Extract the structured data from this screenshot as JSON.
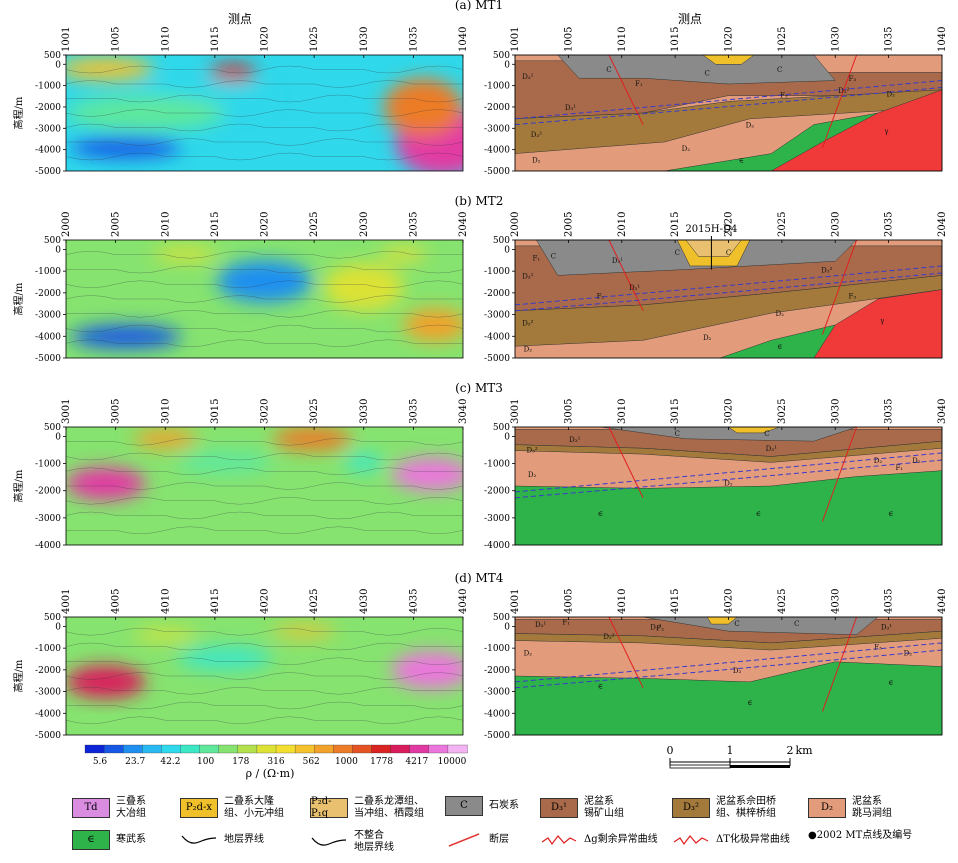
{
  "panels": [
    {
      "id": "a",
      "title": "(a) MT1",
      "stations": [
        "1001",
        "1005",
        "1010",
        "1015",
        "1020",
        "1025",
        "1030",
        "1035",
        "1040"
      ],
      "yticks": [
        "500",
        "0",
        "-1000",
        "-2000",
        "-3000",
        "-4000",
        "-5000"
      ],
      "left_head": "测点",
      "right_head": "测点",
      "borehole": "",
      "units": [
        {
          "label": "C",
          "x": 0.22,
          "y": 0.12
        },
        {
          "label": "C",
          "x": 0.45,
          "y": 0.15
        },
        {
          "label": "C",
          "x": 0.62,
          "y": 0.12
        },
        {
          "label": "D₃¹",
          "x": 0.03,
          "y": 0.18
        },
        {
          "label": "D₃¹",
          "x": 0.13,
          "y": 0.45
        },
        {
          "label": "D₃²",
          "x": 0.05,
          "y": 0.68
        },
        {
          "label": "D₂",
          "x": 0.05,
          "y": 0.9
        },
        {
          "label": "D₃²",
          "x": 0.77,
          "y": 0.3
        },
        {
          "label": "D₂",
          "x": 0.88,
          "y": 0.33
        },
        {
          "label": "D₂",
          "x": 0.55,
          "y": 0.6
        },
        {
          "label": "D₂",
          "x": 0.4,
          "y": 0.8
        },
        {
          "label": "∈",
          "x": 0.53,
          "y": 0.9
        },
        {
          "label": "γ",
          "x": 0.87,
          "y": 0.65
        },
        {
          "label": "F₁",
          "x": 0.29,
          "y": 0.24
        },
        {
          "label": "F₂",
          "x": 0.63,
          "y": 0.34
        },
        {
          "label": "F₃",
          "x": 0.79,
          "y": 0.2
        }
      ]
    },
    {
      "id": "b",
      "title": "(b) MT2",
      "stations": [
        "2000",
        "2005",
        "2010",
        "2015",
        "2020",
        "2025",
        "2030",
        "2035",
        "2040"
      ],
      "yticks": [
        "500",
        "0",
        "-1000",
        "-2000",
        "-3000",
        "-4000",
        "-5000"
      ],
      "left_head": "",
      "right_head": "",
      "borehole": "2015H-D4",
      "units": [
        {
          "label": "C",
          "x": 0.38,
          "y": 0.1
        },
        {
          "label": "C",
          "x": 0.5,
          "y": 0.1
        },
        {
          "label": "C",
          "x": 0.09,
          "y": 0.13
        },
        {
          "label": "D₃¹",
          "x": 0.03,
          "y": 0.3
        },
        {
          "label": "D₃¹",
          "x": 0.24,
          "y": 0.17
        },
        {
          "label": "D₃¹",
          "x": 0.28,
          "y": 0.4
        },
        {
          "label": "D₃²",
          "x": 0.03,
          "y": 0.7
        },
        {
          "label": "D₂",
          "x": 0.03,
          "y": 0.92
        },
        {
          "label": "D₂",
          "x": 0.45,
          "y": 0.82
        },
        {
          "label": "D₃²",
          "x": 0.73,
          "y": 0.25
        },
        {
          "label": "D₂",
          "x": 0.62,
          "y": 0.62
        },
        {
          "label": "∈",
          "x": 0.62,
          "y": 0.9
        },
        {
          "label": "γ",
          "x": 0.86,
          "y": 0.68
        },
        {
          "label": "F₁",
          "x": 0.05,
          "y": 0.15
        },
        {
          "label": "F₂",
          "x": 0.2,
          "y": 0.47
        },
        {
          "label": "F₃",
          "x": 0.79,
          "y": 0.47
        }
      ]
    },
    {
      "id": "c",
      "title": "(c) MT3",
      "stations": [
        "3001",
        "3005",
        "3010",
        "3015",
        "3020",
        "3025",
        "3030",
        "3035",
        "3040"
      ],
      "yticks": [
        "500",
        "0",
        "-1000",
        "-2000",
        "-3000",
        "-4000"
      ],
      "left_head": "",
      "right_head": "",
      "borehole": "",
      "units": [
        {
          "label": "C",
          "x": 0.38,
          "y": 0.05
        },
        {
          "label": "C",
          "x": 0.59,
          "y": 0.05
        },
        {
          "label": "D₃¹",
          "x": 0.14,
          "y": 0.1
        },
        {
          "label": "D₃¹",
          "x": 0.6,
          "y": 0.18
        },
        {
          "label": "D₃²",
          "x": 0.04,
          "y": 0.19
        },
        {
          "label": "D₂",
          "x": 0.04,
          "y": 0.4
        },
        {
          "label": "D₂",
          "x": 0.5,
          "y": 0.47
        },
        {
          "label": "D₂",
          "x": 0.85,
          "y": 0.28
        },
        {
          "label": "D₂",
          "x": 0.94,
          "y": 0.28
        },
        {
          "label": "∈",
          "x": 0.2,
          "y": 0.73
        },
        {
          "label": "∈",
          "x": 0.57,
          "y": 0.73
        },
        {
          "label": "∈",
          "x": 0.88,
          "y": 0.73
        },
        {
          "label": "F₁",
          "x": 0.9,
          "y": 0.34
        }
      ]
    },
    {
      "id": "d",
      "title": "(d) MT4",
      "stations": [
        "4001",
        "4005",
        "4010",
        "4015",
        "4020",
        "4025",
        "4030",
        "4035",
        "4040"
      ],
      "yticks": [
        "500",
        "0",
        "-1000",
        "-2000",
        "-3000",
        "-4000",
        "-5000"
      ],
      "left_head": "",
      "right_head": "",
      "borehole": "",
      "units": [
        {
          "label": "C",
          "x": 0.52,
          "y": 0.05
        },
        {
          "label": "C",
          "x": 0.66,
          "y": 0.05
        },
        {
          "label": "D₃¹",
          "x": 0.06,
          "y": 0.06
        },
        {
          "label": "D₃¹",
          "x": 0.33,
          "y": 0.08
        },
        {
          "label": "D₃¹",
          "x": 0.87,
          "y": 0.08
        },
        {
          "label": "D₃²",
          "x": 0.22,
          "y": 0.16
        },
        {
          "label": "D₂",
          "x": 0.03,
          "y": 0.3
        },
        {
          "label": "D₂",
          "x": 0.52,
          "y": 0.45
        },
        {
          "label": "D₂",
          "x": 0.92,
          "y": 0.3
        },
        {
          "label": "∈",
          "x": 0.2,
          "y": 0.58
        },
        {
          "label": "∈",
          "x": 0.55,
          "y": 0.72
        },
        {
          "label": "∈",
          "x": 0.88,
          "y": 0.55
        },
        {
          "label": "F₁",
          "x": 0.12,
          "y": 0.04
        },
        {
          "label": "F₂",
          "x": 0.34,
          "y": 0.09
        },
        {
          "label": "F₃",
          "x": 0.85,
          "y": 0.25
        }
      ]
    }
  ],
  "ylabel": "高程/m",
  "colorbar": {
    "ticks": [
      "5.6",
      "23.7",
      "42.2",
      "100",
      "178",
      "316",
      "562",
      "1000",
      "1778",
      "4217",
      "10000"
    ],
    "unit_label": "ρ / (Ω·m)",
    "colors": [
      "#0a24d6",
      "#1657e6",
      "#1f8ff0",
      "#28b9f2",
      "#2fd8ea",
      "#3ce7c6",
      "#5fe89c",
      "#86e36f",
      "#b4e04b",
      "#dde236",
      "#f2df2f",
      "#f3c22d",
      "#f1a22b",
      "#ec7c28",
      "#e55325",
      "#d92422",
      "#d91c5c",
      "#e23aa3",
      "#eb76dc",
      "#f4b3f2"
    ]
  },
  "scalebar": {
    "ticks": [
      "0",
      "1",
      "2"
    ],
    "unit": "km"
  },
  "geo_colors": {
    "C": "#8a8a8a",
    "D31": "#a86a4a",
    "D32": "#a47a3c",
    "D2": "#e39c7b",
    "cambrian": "#2db34a",
    "granite": "#f03a3a",
    "P2dx": "#f0c02a",
    "P2dP1q": "#e8c070",
    "Td": "#d98ce0"
  },
  "legend": [
    {
      "key": "Td",
      "box": "Td",
      "text": "三叠系\n大冶组",
      "color": "#d98ce0"
    },
    {
      "key": "P2dx",
      "box": "P₂d-x",
      "text": "二叠系大隆\n组、小元冲组",
      "color": "#f0c02a"
    },
    {
      "key": "P2dP1q",
      "box": "P₂d-P₁q",
      "text": "二叠系龙潭组、\n当冲组、栖霞组",
      "color": "#e8c070"
    },
    {
      "key": "C",
      "box": "C",
      "text": "石炭系",
      "color": "#8a8a8a"
    },
    {
      "key": "D31",
      "box": "D₃¹",
      "text": "泥盆系\n锡矿山组",
      "color": "#a86a4a"
    },
    {
      "key": "D32",
      "box": "D₃²",
      "text": "泥盆系佘田桥\n组、棋梓桥组",
      "color": "#a47a3c"
    },
    {
      "key": "D2",
      "box": "D₂",
      "text": "泥盆系\n跳马涧组",
      "color": "#e39c7b"
    },
    {
      "key": "cambrian",
      "box": "∈",
      "text": "寒武系",
      "color": "#2db34a"
    },
    {
      "key": "boundary",
      "box": "",
      "text": "地层界线",
      "color": ""
    },
    {
      "key": "unconf",
      "box": "",
      "text": "不整合\n地层界线",
      "color": ""
    },
    {
      "key": "fault",
      "box": "",
      "text": "断层",
      "color": ""
    },
    {
      "key": "grav",
      "box": "",
      "text": "Δg剩余异常曲线",
      "color": ""
    },
    {
      "key": "temp",
      "box": "",
      "text": "ΔT化极异常曲线",
      "color": ""
    },
    {
      "key": "mtpt",
      "box": "",
      "text": "●2002  MT点线及编号",
      "color": ""
    }
  ]
}
